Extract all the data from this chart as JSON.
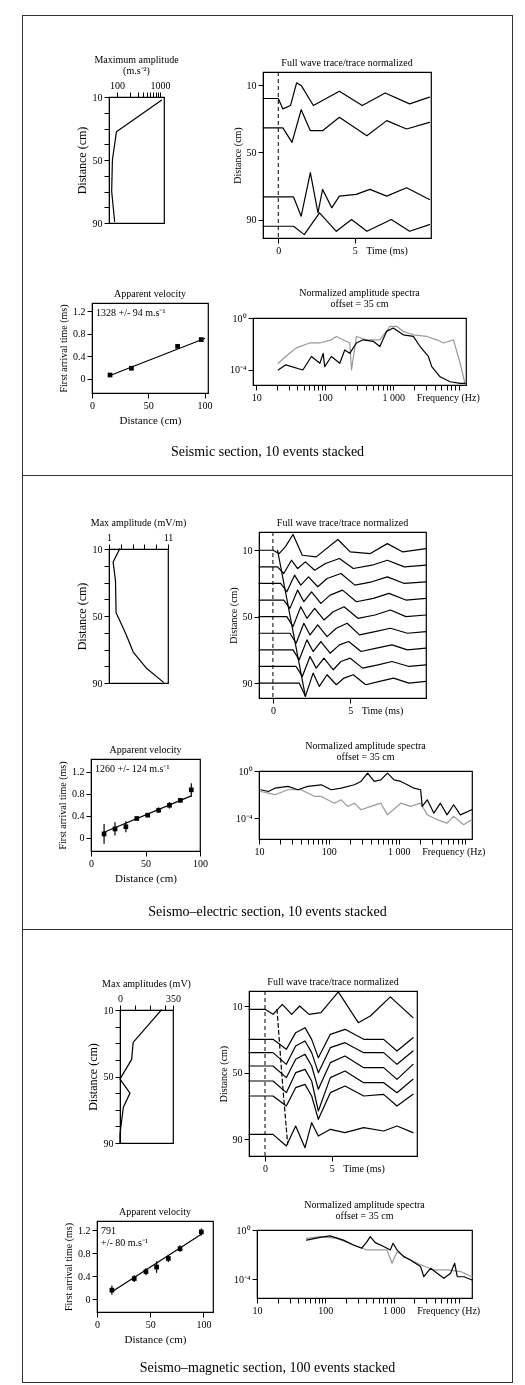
{
  "chart_data": [
    {
      "type": "line",
      "title": "Maximum amplitude",
      "subtitle": "(m.s⁻²)",
      "ylabel": "Distance (cm)",
      "log": "x",
      "xlim": [
        65,
        1240
      ],
      "ylim": [
        90,
        10
      ],
      "xticks": [
        100,
        {
          "value": 200,
          "label": null
        },
        {
          "value": 300,
          "label": null
        },
        {
          "value": 400,
          "label": null
        },
        {
          "value": 500,
          "label": null
        },
        {
          "value": 600,
          "label": null
        },
        {
          "value": 700,
          "label": null
        },
        {
          "value": 800,
          "label": null
        },
        {
          "value": 900,
          "label": null
        },
        1000
      ],
      "yticks": [
        10,
        {
          "value": 20,
          "label": null
        },
        {
          "value": 30,
          "label": null
        },
        {
          "value": 40,
          "label": null
        },
        50,
        {
          "value": 60,
          "label": null
        },
        {
          "value": 70,
          "label": null
        },
        {
          "value": 80,
          "label": null
        },
        90
      ],
      "series": [
        {
          "color": "#000000",
          "x": [
            1080,
            97,
            78,
            75,
            88
          ],
          "values": [
            12,
            32,
            50,
            70,
            89
          ]
        }
      ]
    },
    {
      "type": "line",
      "title": "Full wave trace/trace normalized",
      "xlabel": "Time (ms)",
      "ylabel": "Distance (cm)",
      "xlim": [
        -1,
        10
      ],
      "ylim": [
        101,
        2
      ],
      "xticks": [
        0,
        5
      ],
      "yticks": [
        10,
        50,
        90
      ],
      "ref_lines": [
        {
          "axis": "x",
          "value": 0,
          "line_style": "dashed"
        }
      ],
      "series": [
        {
          "color": "#000000",
          "x": [
            -1,
            0,
            0.3,
            0.8,
            1.2,
            1.5,
            2.3,
            4,
            5.5,
            7,
            8.6,
            9.9
          ],
          "values": [
            17.8,
            17.8,
            24,
            22,
            8.5,
            10,
            22,
            13.5,
            22,
            14.5,
            21,
            17
          ]
        },
        {
          "color": "#000000",
          "x": [
            -1,
            0,
            0.3,
            0.9,
            1.5,
            2.1,
            2.9,
            4,
            5.8,
            7.1,
            8.4,
            9.9
          ],
          "values": [
            35.3,
            35.3,
            35.3,
            44,
            24.5,
            37,
            37,
            29,
            40,
            31,
            36,
            32
          ]
        },
        {
          "color": "#000000",
          "x": [
            -1,
            1,
            1.5,
            2.1,
            2.6,
            2.9,
            3.5,
            4,
            5.1,
            6,
            7.1,
            8.4,
            9.9
          ],
          "values": [
            76.5,
            76.5,
            88,
            62,
            86,
            72,
            83,
            76,
            75,
            72,
            76,
            71,
            78
          ]
        },
        {
          "color": "#000000",
          "x": [
            -1,
            1,
            1.7,
            2.7,
            3.8,
            4.8,
            5.8,
            7.4,
            8.6,
            9.9
          ],
          "values": [
            94,
            94,
            99,
            86,
            97,
            90,
            97,
            90,
            97,
            93
          ]
        }
      ]
    },
    {
      "type": "scatter",
      "title": "Apparent velocity",
      "xlabel": "Distance (cm)",
      "ylabel": "First arrival time (ms)",
      "xlim": [
        0,
        103
      ],
      "ylim": [
        -0.25,
        1.35
      ],
      "xticks": [
        0,
        50,
        100
      ],
      "yticks": [
        0,
        0.4,
        0.8,
        1.2
      ],
      "annotations": [
        "1328 +/- 94 m.s⁻¹"
      ],
      "series": [
        {
          "color": "#000000",
          "marker": "square",
          "x": [
            16,
            35,
            76,
            97
          ],
          "values": [
            0.07,
            0.19,
            0.58,
            0.7
          ],
          "errors": [
            0.03,
            0.03,
            0.03,
            0.03
          ]
        },
        {
          "type": "line",
          "color": "#000000",
          "x": [
            16,
            100
          ],
          "values": [
            0.06,
            0.72
          ]
        }
      ]
    },
    {
      "type": "line",
      "title": "Normalized amplitude spectra",
      "subtitle": "offset = 35 cm",
      "xlabel": "Frequency (Hz)",
      "log": "xy",
      "xlim": [
        9,
        11500
      ],
      "ylim": [
        7e-06,
        1
      ],
      "xticks": [
        10,
        {
          "value": 20,
          "label": null
        },
        {
          "value": 30,
          "label": null
        },
        {
          "value": 40,
          "label": null
        },
        {
          "value": 50,
          "label": null
        },
        {
          "value": 60,
          "label": null
        },
        {
          "value": 70,
          "label": null
        },
        {
          "value": 80,
          "label": null
        },
        {
          "value": 90,
          "label": null
        },
        100,
        {
          "value": 200,
          "label": null
        },
        {
          "value": 300,
          "label": null
        },
        {
          "value": 400,
          "label": null
        },
        {
          "value": 500,
          "label": null
        },
        {
          "value": 600,
          "label": null
        },
        {
          "value": 700,
          "label": null
        },
        {
          "value": 800,
          "label": null
        },
        {
          "value": 900,
          "label": null
        },
        {
          "value": 1000,
          "label": "1 000"
        },
        {
          "value": 2000,
          "label": null
        },
        {
          "value": 3000,
          "label": null
        },
        {
          "value": 4000,
          "label": null
        },
        {
          "value": 5000,
          "label": null
        },
        {
          "value": 6000,
          "label": null
        },
        {
          "value": 7000,
          "label": null
        },
        {
          "value": 8000,
          "label": null
        },
        {
          "value": 9000,
          "label": null
        }
      ],
      "yticks": [
        {
          "value": 1,
          "label": "10⁰"
        },
        {
          "value": 0.0001,
          "label": "10⁻⁴"
        }
      ],
      "annotations": [
        "Seismic section, 10 events stacked"
      ],
      "series": [
        {
          "color": "#999999",
          "x": [
            21,
            27,
            38,
            60,
            85,
            125,
            148,
            232,
            246,
            290,
            407,
            638,
            893,
            1120,
            1400,
            1960,
            3080,
            4310,
            5400,
            7550,
            9460,
            11200
          ],
          "values": [
            0.00033,
            0.0011,
            0.0048,
            0.012,
            0.012,
            0.021,
            0.038,
            0.012,
            0.0001,
            0.038,
            0.021,
            0.021,
            0.23,
            0.23,
            0.093,
            0.051,
            0.038,
            0.021,
            0.012,
            0.021,
            0.00033,
            7.5e-06
          ]
        },
        {
          "color": "#000000",
          "x": [
            21,
            27,
            48,
            64,
            85,
            95,
            100,
            125,
            166,
            196,
            232,
            290,
            364,
            510,
            638,
            798,
            1000,
            1400,
            1960,
            2460,
            3250,
            3640,
            4820,
            6750,
            9460,
            11200
          ],
          "values": [
            0.0001,
            0.00025,
            0.0001,
            0.0011,
            0.00033,
            0.0019,
            0.00018,
            0.0011,
            0.00033,
            0.0035,
            0.0019,
            0.012,
            0.021,
            0.016,
            0.0064,
            0.093,
            0.17,
            0.051,
            0.038,
            0.0064,
            0.0011,
            0.00018,
            3e-05,
            1.25e-05,
            9.3e-06,
            9.3e-06
          ]
        }
      ]
    },
    {
      "type": "line",
      "title": "Max amplitude (mV/m)",
      "ylabel": "Distance (cm)",
      "xlim": [
        1,
        11
      ],
      "ylim": [
        90,
        10
      ],
      "xticks": [
        1,
        {
          "value": 3,
          "label": null
        },
        {
          "value": 5,
          "label": null
        },
        {
          "value": 7,
          "label": null
        },
        {
          "value": 9,
          "label": null
        },
        11
      ],
      "yticks": [
        10,
        {
          "value": 20,
          "label": null
        },
        {
          "value": 30,
          "label": null
        },
        {
          "value": 40,
          "label": null
        },
        50,
        {
          "value": 60,
          "label": null
        },
        {
          "value": 70,
          "label": null
        },
        {
          "value": 80,
          "label": null
        },
        90
      ],
      "series": [
        {
          "color": "#000000",
          "x": [
            2.8,
            1.7,
            2.1,
            2.2,
            2.8,
            3.9,
            5.1,
            7.3,
            10.2
          ],
          "values": [
            10,
            17.8,
            29,
            48,
            52.5,
            61,
            71.5,
            81,
            89.5
          ]
        }
      ]
    },
    {
      "type": "line",
      "title": "Full wave trace/trace normalized",
      "xlabel": "Time (ms)",
      "ylabel": "Distance (cm)",
      "xlim": [
        -0.9,
        9.9
      ],
      "ylim": [
        99,
        -1
      ],
      "xticks": [
        0,
        5
      ],
      "yticks": [
        10,
        50,
        90
      ],
      "ref_lines": [
        {
          "axis": "x",
          "value": 0,
          "line_style": "dashed"
        }
      ],
      "series": [
        {
          "color": "#000000",
          "x": [
            -0.9,
            0,
            0.4,
            0.8,
            1.3,
            1.9,
            2.8,
            4.2,
            5,
            6.3,
            7.4,
            8.4,
            9.9
          ],
          "values": [
            10,
            10,
            12,
            8,
            0.5,
            13,
            14,
            3.5,
            11,
            12,
            6,
            11,
            9
          ]
        },
        {
          "color": "#000000",
          "x": [
            -0.9,
            0.3,
            0.7,
            1.2,
            1.6,
            2.1,
            2.7,
            3.4,
            4.3,
            5.2,
            6.4,
            7.4,
            8.5,
            9.9
          ],
          "values": [
            20,
            20,
            24,
            16,
            21,
            17,
            22,
            18,
            15,
            21,
            19,
            16,
            20,
            19
          ]
        },
        {
          "color": "#000000",
          "x": [
            -0.9,
            0.5,
            0.9,
            1.4,
            1.8,
            2.3,
            2.9,
            3.5,
            4.4,
            5.3,
            6.4,
            7.4,
            8.5,
            9.9
          ],
          "values": [
            30,
            30,
            35,
            25,
            31,
            26,
            32,
            27,
            24,
            31,
            29,
            26,
            30,
            29
          ]
        },
        {
          "color": "#000000",
          "x": [
            -0.9,
            0.7,
            1.1,
            1.6,
            2,
            2.5,
            3.1,
            3.7,
            4.5,
            5.4,
            6.5,
            7.5,
            8.6,
            9.9
          ],
          "values": [
            40,
            40,
            45,
            34,
            41,
            35,
            42,
            37,
            34,
            41,
            39,
            36,
            40,
            39
          ]
        },
        {
          "color": "#000000",
          "x": [
            -0.9,
            0.9,
            1.3,
            1.8,
            2.2,
            2.7,
            3.3,
            3.9,
            4.6,
            5.5,
            6.6,
            7.6,
            8.6,
            9.9
          ],
          "values": [
            50,
            50,
            56,
            44,
            51,
            45,
            52,
            47,
            44,
            51,
            49,
            46,
            50,
            49
          ]
        },
        {
          "color": "#000000",
          "x": [
            -0.9,
            1.1,
            1.5,
            2,
            2.4,
            2.9,
            3.5,
            4.1,
            4.8,
            5.6,
            6.6,
            7.6,
            8.7,
            9.9
          ],
          "values": [
            60,
            60,
            66,
            54,
            61,
            55,
            62,
            57,
            54,
            61,
            59,
            57,
            60,
            59
          ]
        },
        {
          "color": "#000000",
          "x": [
            -0.9,
            1.3,
            1.7,
            2.2,
            2.6,
            3.1,
            3.7,
            4.3,
            4.9,
            5.7,
            6.7,
            7.7,
            8.7,
            9.9
          ],
          "values": [
            70,
            70,
            76,
            64,
            71,
            65,
            72,
            67,
            65,
            71,
            69,
            67,
            70,
            69
          ]
        },
        {
          "color": "#000000",
          "x": [
            -0.9,
            1.5,
            1.9,
            2.4,
            2.8,
            3.3,
            3.9,
            4.4,
            5,
            5.8,
            6.8,
            7.7,
            8.8,
            9.9
          ],
          "values": [
            80,
            80,
            86,
            74,
            81,
            75,
            82,
            77,
            75,
            81,
            79,
            77,
            80,
            79
          ]
        },
        {
          "color": "#000000",
          "x": [
            -0.9,
            1.7,
            2.1,
            2.6,
            3,
            3.5,
            4.1,
            4.6,
            5.2,
            6,
            6.9,
            7.8,
            8.8,
            9.9
          ],
          "values": [
            90,
            90,
            98,
            84,
            92,
            85,
            91,
            87,
            85,
            91,
            89,
            87,
            90,
            89
          ]
        },
        {
          "color": "#000000",
          "x": [
            0.3,
            2.1
          ],
          "values": [
            10,
            98
          ]
        }
      ]
    },
    {
      "type": "scatter",
      "title": "Apparent velocity",
      "xlabel": "Distance (cm)",
      "ylabel": "First arrival time (ms)",
      "xlim": [
        0,
        100
      ],
      "ylim": [
        -0.24,
        1.43
      ],
      "xticks": [
        0,
        50,
        100
      ],
      "yticks": [
        0,
        0.4,
        0.8,
        1.2
      ],
      "annotations": [
        "1260 +/- 124 m.s⁻¹"
      ],
      "series": [
        {
          "color": "#000000",
          "marker": "square",
          "x": [
            12,
            22,
            32,
            42,
            52,
            62,
            72,
            82,
            92
          ],
          "values": [
            0.07,
            0.16,
            0.2,
            0.35,
            0.41,
            0.5,
            0.59,
            0.68,
            0.87
          ],
          "errors": [
            0.18,
            0.12,
            0.1,
            0.03,
            0.03,
            0.05,
            0.06,
            0.04,
            0.12
          ]
        },
        {
          "type": "line",
          "color": "#000000",
          "x": [
            12,
            92
          ],
          "values": [
            0.1,
            0.76
          ]
        }
      ]
    },
    {
      "type": "line",
      "title": "Normalized amplitude spectra",
      "subtitle": "offset = 35 cm",
      "xlabel": "Frequency (Hz)",
      "log": "xy",
      "xlim": [
        10,
        11200
      ],
      "ylim": [
        1.6e-06,
        1.1
      ],
      "xticks": [
        10,
        {
          "value": 20,
          "label": null
        },
        {
          "value": 30,
          "label": null
        },
        {
          "value": 40,
          "label": null
        },
        {
          "value": 50,
          "label": null
        },
        {
          "value": 60,
          "label": null
        },
        {
          "value": 70,
          "label": null
        },
        {
          "value": 80,
          "label": null
        },
        {
          "value": 90,
          "label": null
        },
        100,
        {
          "value": 200,
          "label": null
        },
        {
          "value": 300,
          "label": null
        },
        {
          "value": 400,
          "label": null
        },
        {
          "value": 500,
          "label": null
        },
        {
          "value": 600,
          "label": null
        },
        {
          "value": 700,
          "label": null
        },
        {
          "value": 800,
          "label": null
        },
        {
          "value": 900,
          "label": null
        },
        {
          "value": 1000,
          "label": "1 000"
        },
        {
          "value": 2000,
          "label": null
        },
        {
          "value": 3000,
          "label": null
        },
        {
          "value": 4000,
          "label": null
        },
        {
          "value": 5000,
          "label": null
        },
        {
          "value": 6000,
          "label": null
        },
        {
          "value": 7000,
          "label": null
        },
        {
          "value": 8000,
          "label": null
        },
        {
          "value": 9000,
          "label": null
        }
      ],
      "yticks": [
        {
          "value": 1,
          "label": "10⁰"
        },
        {
          "value": 0.0001,
          "label": "10⁻⁴"
        }
      ],
      "annotations": [
        "Seismo–electric section, 10 events stacked"
      ],
      "series": [
        {
          "color": "#999999",
          "x": [
            10.6,
            13.6,
            16.9,
            26,
            40,
            63,
            78,
            120,
            150,
            186,
            232,
            288,
            400,
            555,
            690,
            1070,
            1480,
            2060,
            2560,
            3550,
            4920,
            6120,
            8500,
            11100
          ],
          "values": [
            0.019,
            0.014,
            0.01,
            0.027,
            0.027,
            0.0072,
            0.0072,
            0.0019,
            0.0037,
            0.001,
            0.0019,
            0.00052,
            0.001,
            0.0019,
            0.00019,
            0.0019,
            0.001,
            0.0019,
            0.00019,
            7.2e-05,
            3.7e-05,
            0.00014,
            2.7e-05,
            7.2e-05
          ]
        },
        {
          "color": "#000000",
          "x": [
            10.6,
            13.6,
            16.9,
            26,
            36,
            50,
            78,
            108,
            150,
            232,
            288,
            359,
            446,
            555,
            690,
            859,
            1070,
            1330,
            1650,
            2060,
            2170,
            2560,
            3180,
            3950,
            4920,
            6120,
            7620,
            11100
          ],
          "values": [
            0.027,
            0.019,
            0.037,
            0.052,
            0.027,
            0.052,
            0.072,
            0.027,
            0.037,
            0.072,
            0.14,
            0.72,
            0.14,
            0.19,
            0.72,
            0.19,
            0.14,
            0.072,
            0.037,
            0.027,
            0.001,
            0.0037,
            0.00027,
            0.0019,
            0.00019,
            0.0014,
            0.00019,
            0.00052
          ]
        }
      ]
    },
    {
      "type": "line",
      "title": "Max amplitudes (mV)",
      "ylabel": "Distance (cm)",
      "xlim": [
        0,
        350
      ],
      "ylim": [
        90,
        10
      ],
      "xticks": [
        0,
        {
          "value": 100,
          "label": null
        },
        {
          "value": 200,
          "label": null
        },
        {
          "value": 300,
          "label": null
        },
        350
      ],
      "yticks": [
        10,
        {
          "value": 20,
          "label": null
        },
        {
          "value": 30,
          "label": null
        },
        {
          "value": 40,
          "label": null
        },
        50,
        {
          "value": 60,
          "label": null
        },
        {
          "value": 70,
          "label": null
        },
        {
          "value": 80,
          "label": null
        },
        90
      ],
      "series": [
        {
          "color": "#000000",
          "x": [
            273,
            87,
            77,
            0,
            66,
            22,
            0,
            0
          ],
          "values": [
            10,
            29.5,
            39.7,
            51.6,
            60,
            68.5,
            84.6,
            90
          ]
        }
      ]
    },
    {
      "type": "line",
      "title": "Full wave trace/trace normalized",
      "xlabel": "Time (ms)",
      "ylabel": "Distance (cm)",
      "xlim": [
        -1.2,
        11.4
      ],
      "ylim": [
        100,
        1
      ],
      "xticks": [
        0,
        5
      ],
      "yticks": [
        10,
        50,
        90
      ],
      "ref_lines": [
        {
          "axis": "x",
          "value": 0,
          "line_style": "dashed"
        }
      ],
      "series": [
        {
          "color": "#000000",
          "x": [
            -1.2,
            0,
            0.6,
            1.3,
            2,
            2.6,
            3.3,
            4.2,
            5.5,
            7,
            7.9,
            9.4,
            11.1
          ],
          "values": [
            12,
            12,
            15,
            9,
            15,
            10,
            15,
            14,
            1.5,
            20,
            16,
            4.5,
            17
          ]
        },
        {
          "color": "#000000",
          "x": [
            -1.2,
            0.6,
            1.6,
            2.3,
            3,
            3.5,
            4,
            4.9,
            6,
            7.4,
            8.9,
            9.9,
            11.1
          ],
          "values": [
            30,
            30,
            36,
            26,
            23,
            30,
            41,
            27,
            24,
            30,
            30,
            37,
            29
          ]
        },
        {
          "color": "#000000",
          "x": [
            -1.2,
            0.6,
            1.6,
            2.3,
            3,
            3.5,
            4,
            4.9,
            6,
            7.4,
            8.9,
            9.9,
            11.1
          ],
          "values": [
            38,
            38,
            45,
            34,
            31,
            38,
            50,
            35,
            32,
            38,
            38,
            45,
            37
          ]
        },
        {
          "color": "#000000",
          "x": [
            -1.2,
            0.6,
            1.6,
            2.3,
            3,
            3.5,
            4,
            4.9,
            6,
            7.4,
            8.9,
            9.9,
            11.1
          ],
          "values": [
            46,
            46,
            53,
            42,
            39,
            46,
            60,
            44,
            40,
            47,
            47,
            54,
            45
          ]
        },
        {
          "color": "#000000",
          "x": [
            -1.2,
            0.6,
            1.6,
            2.3,
            3,
            3.5,
            4,
            4.9,
            6,
            7.4,
            8.9,
            9.9,
            11.1
          ],
          "values": [
            55,
            55,
            62,
            50,
            48,
            55,
            73,
            53,
            49,
            56,
            56,
            62,
            54
          ]
        },
        {
          "color": "#000000",
          "x": [
            -1.2,
            0.6,
            1.6,
            2.3,
            3,
            3.5,
            4,
            4.9,
            6,
            7.4,
            8.9,
            9.9,
            11.1
          ],
          "values": [
            64,
            64,
            70,
            59,
            57,
            64,
            78,
            62,
            58,
            64,
            63,
            70,
            63
          ]
        },
        {
          "color": "#000000",
          "x": [
            -1.2,
            0.6,
            1.6,
            2.3,
            3,
            3.5,
            4,
            4.9,
            6,
            7.4,
            8.9,
            9.9,
            11.1
          ],
          "values": [
            87,
            87,
            94,
            82,
            95,
            80,
            88,
            84,
            86,
            83,
            85,
            82,
            86
          ]
        },
        {
          "color": "#000000",
          "line_style": "dashed",
          "x": [
            0.9,
            1.3,
            1.7
          ],
          "values": [
            12,
            55,
            93
          ]
        }
      ]
    },
    {
      "type": "scatter",
      "title": "Apparent velocity",
      "xlabel": "Distance (cm)",
      "ylabel": "First arrival time (ms)",
      "xlim": [
        0,
        109
      ],
      "ylim": [
        -0.22,
        1.36
      ],
      "xticks": [
        0,
        50,
        100
      ],
      "yticks": [
        0,
        0.4,
        0.8,
        1.2
      ],
      "annotations": [
        "791\n+/- 80 m.s⁻¹"
      ],
      "series": [
        {
          "color": "#000000",
          "marker": "square",
          "x": [
            14,
            35,
            46,
            56,
            67,
            78,
            98
          ],
          "values": [
            0.16,
            0.36,
            0.48,
            0.56,
            0.71,
            0.88,
            1.17
          ],
          "errors": [
            0.08,
            0.06,
            0.06,
            0.1,
            0.06,
            0.06,
            0.06
          ]
        },
        {
          "type": "line",
          "color": "#000000",
          "x": [
            14,
            98
          ],
          "values": [
            0.13,
            1.13
          ]
        }
      ]
    },
    {
      "type": "line",
      "title": "Normalized amplitude spectra",
      "subtitle": "offset = 35 cm",
      "xlabel": "Frequency (Hz)",
      "log": "xy",
      "xlim": [
        10,
        14000
      ],
      "ylim": [
        3e-06,
        1
      ],
      "xticks": [
        10,
        {
          "value": 20,
          "label": null
        },
        {
          "value": 30,
          "label": null
        },
        {
          "value": 40,
          "label": null
        },
        {
          "value": 50,
          "label": null
        },
        {
          "value": 60,
          "label": null
        },
        {
          "value": 70,
          "label": null
        },
        {
          "value": 80,
          "label": null
        },
        {
          "value": 90,
          "label": null
        },
        100,
        {
          "value": 200,
          "label": null
        },
        {
          "value": 300,
          "label": null
        },
        {
          "value": 400,
          "label": null
        },
        {
          "value": 500,
          "label": null
        },
        {
          "value": 600,
          "label": null
        },
        {
          "value": 700,
          "label": null
        },
        {
          "value": 800,
          "label": null
        },
        {
          "value": 900,
          "label": null
        },
        {
          "value": 1000,
          "label": "1 000"
        },
        {
          "value": 2000,
          "label": null
        },
        {
          "value": 3000,
          "label": null
        },
        {
          "value": 4000,
          "label": null
        },
        {
          "value": 5000,
          "label": null
        },
        {
          "value": 6000,
          "label": null
        },
        {
          "value": 7000,
          "label": null
        },
        {
          "value": 8000,
          "label": null
        },
        {
          "value": 9000,
          "label": null
        }
      ],
      "yticks": [
        {
          "value": 1,
          "label": "10⁰"
        },
        {
          "value": 0.0001,
          "label": "10⁻⁴"
        }
      ],
      "annotations": [
        "Seismo–magnetic section, 100 events stacked"
      ],
      "series": [
        {
          "color": "#999999",
          "x": [
            53,
            84,
            147,
            258,
            405,
            637,
            798,
            945,
            1120,
            1570,
            2470,
            3870,
            6080,
            9550,
            14000
          ],
          "values": [
            0.21,
            0.29,
            0.21,
            0.061,
            0.024,
            0.024,
            0.024,
            0.002,
            0.017,
            0.005,
            0.0015,
            0.00057,
            0.00057,
            0.00042,
            0.00016
          ]
        },
        {
          "color": "#000000",
          "x": [
            53,
            84,
            117,
            184,
            258,
            342,
            405,
            454,
            538,
            713,
            893,
            977,
            1120,
            1400,
            1760,
            2470,
            2760,
            3460,
            4330,
            5430,
            6810,
            7800,
            8530,
            10700,
            14000
          ],
          "values": [
            0.15,
            0.25,
            0.33,
            0.15,
            0.061,
            0.033,
            0.11,
            0.29,
            0.094,
            0.045,
            0.024,
            0.083,
            0.024,
            0.0069,
            0.0037,
            0.0011,
            0.00016,
            0.00078,
            0.00031,
            0.00012,
            0.00031,
            0.002,
            0.00016,
            0.00016,
            8.8e-05
          ]
        }
      ]
    }
  ]
}
